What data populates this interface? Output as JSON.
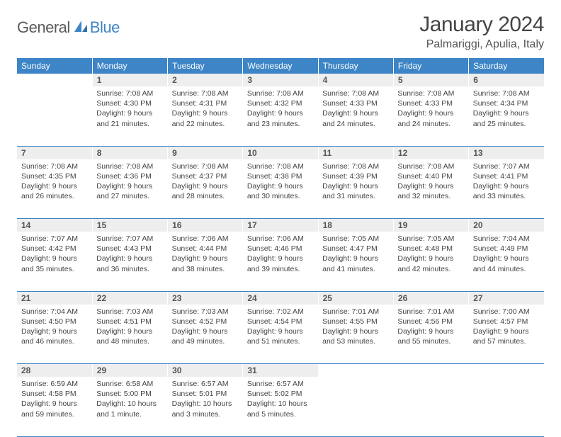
{
  "brand": {
    "left": "General",
    "right": "Blue"
  },
  "title": "January 2024",
  "location": "Palmariggi, Apulia, Italy",
  "colors": {
    "header_bg": "#3d85c6",
    "header_text": "#ffffff",
    "daynum_bg": "#eeeeee",
    "row_border": "#3d85c6",
    "brand_gray": "#5a5a5a",
    "brand_blue": "#3d85c6"
  },
  "days": [
    "Sunday",
    "Monday",
    "Tuesday",
    "Wednesday",
    "Thursday",
    "Friday",
    "Saturday"
  ],
  "weeks": [
    [
      null,
      {
        "n": "1",
        "sr": "7:08 AM",
        "ss": "4:30 PM",
        "dl": "9 hours and 21 minutes."
      },
      {
        "n": "2",
        "sr": "7:08 AM",
        "ss": "4:31 PM",
        "dl": "9 hours and 22 minutes."
      },
      {
        "n": "3",
        "sr": "7:08 AM",
        "ss": "4:32 PM",
        "dl": "9 hours and 23 minutes."
      },
      {
        "n": "4",
        "sr": "7:08 AM",
        "ss": "4:33 PM",
        "dl": "9 hours and 24 minutes."
      },
      {
        "n": "5",
        "sr": "7:08 AM",
        "ss": "4:33 PM",
        "dl": "9 hours and 24 minutes."
      },
      {
        "n": "6",
        "sr": "7:08 AM",
        "ss": "4:34 PM",
        "dl": "9 hours and 25 minutes."
      }
    ],
    [
      {
        "n": "7",
        "sr": "7:08 AM",
        "ss": "4:35 PM",
        "dl": "9 hours and 26 minutes."
      },
      {
        "n": "8",
        "sr": "7:08 AM",
        "ss": "4:36 PM",
        "dl": "9 hours and 27 minutes."
      },
      {
        "n": "9",
        "sr": "7:08 AM",
        "ss": "4:37 PM",
        "dl": "9 hours and 28 minutes."
      },
      {
        "n": "10",
        "sr": "7:08 AM",
        "ss": "4:38 PM",
        "dl": "9 hours and 30 minutes."
      },
      {
        "n": "11",
        "sr": "7:08 AM",
        "ss": "4:39 PM",
        "dl": "9 hours and 31 minutes."
      },
      {
        "n": "12",
        "sr": "7:08 AM",
        "ss": "4:40 PM",
        "dl": "9 hours and 32 minutes."
      },
      {
        "n": "13",
        "sr": "7:07 AM",
        "ss": "4:41 PM",
        "dl": "9 hours and 33 minutes."
      }
    ],
    [
      {
        "n": "14",
        "sr": "7:07 AM",
        "ss": "4:42 PM",
        "dl": "9 hours and 35 minutes."
      },
      {
        "n": "15",
        "sr": "7:07 AM",
        "ss": "4:43 PM",
        "dl": "9 hours and 36 minutes."
      },
      {
        "n": "16",
        "sr": "7:06 AM",
        "ss": "4:44 PM",
        "dl": "9 hours and 38 minutes."
      },
      {
        "n": "17",
        "sr": "7:06 AM",
        "ss": "4:46 PM",
        "dl": "9 hours and 39 minutes."
      },
      {
        "n": "18",
        "sr": "7:05 AM",
        "ss": "4:47 PM",
        "dl": "9 hours and 41 minutes."
      },
      {
        "n": "19",
        "sr": "7:05 AM",
        "ss": "4:48 PM",
        "dl": "9 hours and 42 minutes."
      },
      {
        "n": "20",
        "sr": "7:04 AM",
        "ss": "4:49 PM",
        "dl": "9 hours and 44 minutes."
      }
    ],
    [
      {
        "n": "21",
        "sr": "7:04 AM",
        "ss": "4:50 PM",
        "dl": "9 hours and 46 minutes."
      },
      {
        "n": "22",
        "sr": "7:03 AM",
        "ss": "4:51 PM",
        "dl": "9 hours and 48 minutes."
      },
      {
        "n": "23",
        "sr": "7:03 AM",
        "ss": "4:52 PM",
        "dl": "9 hours and 49 minutes."
      },
      {
        "n": "24",
        "sr": "7:02 AM",
        "ss": "4:54 PM",
        "dl": "9 hours and 51 minutes."
      },
      {
        "n": "25",
        "sr": "7:01 AM",
        "ss": "4:55 PM",
        "dl": "9 hours and 53 minutes."
      },
      {
        "n": "26",
        "sr": "7:01 AM",
        "ss": "4:56 PM",
        "dl": "9 hours and 55 minutes."
      },
      {
        "n": "27",
        "sr": "7:00 AM",
        "ss": "4:57 PM",
        "dl": "9 hours and 57 minutes."
      }
    ],
    [
      {
        "n": "28",
        "sr": "6:59 AM",
        "ss": "4:58 PM",
        "dl": "9 hours and 59 minutes."
      },
      {
        "n": "29",
        "sr": "6:58 AM",
        "ss": "5:00 PM",
        "dl": "10 hours and 1 minute."
      },
      {
        "n": "30",
        "sr": "6:57 AM",
        "ss": "5:01 PM",
        "dl": "10 hours and 3 minutes."
      },
      {
        "n": "31",
        "sr": "6:57 AM",
        "ss": "5:02 PM",
        "dl": "10 hours and 5 minutes."
      },
      null,
      null,
      null
    ]
  ],
  "labels": {
    "sunrise": "Sunrise:",
    "sunset": "Sunset:",
    "daylight": "Daylight:"
  }
}
